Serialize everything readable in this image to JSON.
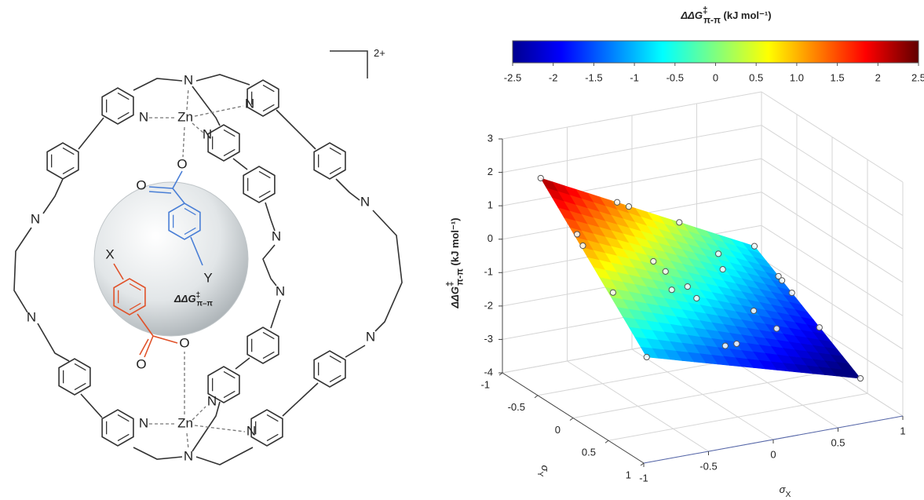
{
  "molecule": {
    "charge": "2+",
    "atom_labels": [
      "N",
      "Zn",
      "N",
      "N",
      "N",
      "N",
      "N",
      "N",
      "N",
      "N",
      "N",
      "N",
      "Zn",
      "N",
      "N",
      "N",
      "O",
      "O",
      "Y",
      "X",
      "O",
      "O"
    ],
    "sphere_label": {
      "symbol": "ΔΔG",
      "sup": "‡",
      "sub": "π–π"
    }
  },
  "chart_data": {
    "type": "surface3d",
    "title": {
      "symbol": "ΔΔG",
      "sup": "‡",
      "sub": "π-π",
      "unit": " (kJ mol⁻¹)"
    },
    "zlabel": {
      "symbol": "ΔΔG",
      "sup": "‡",
      "sub": "π-π",
      "unit": " (kJ mol⁻¹)"
    },
    "xlabel": {
      "symbol": "σ",
      "sub": "X"
    },
    "ylabel": {
      "symbol": "σ",
      "sub": "Y"
    },
    "colorbar": {
      "clim": [
        -2.5,
        2.5
      ],
      "ticks": [
        -2.5,
        -2,
        -1.5,
        -1,
        -0.5,
        0,
        0.5,
        {
          "value": 1,
          "label": "1.0"
        },
        1.5,
        2,
        2.5
      ]
    },
    "xlim": [
      -1,
      1
    ],
    "ylim": [
      -1,
      1
    ],
    "zlim": [
      -4,
      3
    ],
    "xticks": [
      -1,
      -0.5,
      0,
      0.5,
      1
    ],
    "yticks": [
      -1,
      -0.5,
      0,
      0.5,
      1
    ],
    "zticks": [
      3,
      2,
      1,
      0,
      -1,
      -2,
      -3,
      -4
    ],
    "grid": true,
    "surface": [
      [
        -0.95,
        -0.55,
        2.4
      ],
      [
        0.7,
        -0.55,
        -0.8
      ],
      [
        -0.95,
        0.95,
        -0.93
      ],
      [
        0.7,
        0.95,
        -2.73
      ]
    ],
    "points": {
      "x": [
        -0.95,
        -0.92,
        -0.93,
        -0.36,
        -0.27,
        0.12,
        -0.38,
        -0.33,
        -0.38,
        -0.22,
        -0.21,
        0.28,
        0.21,
        0.7,
        -0.91,
        -0.95,
        -0.24,
        -0.13,
        0.22,
        0.7,
        0.7,
        0.7,
        0.7,
        0.7,
        0.31
      ],
      "y": [
        -0.55,
        -0.09,
        0.01,
        -0.55,
        -0.55,
        -0.55,
        0.0,
        0.08,
        0.26,
        0.19,
        0.3,
        -0.29,
        -0.1,
        -0.55,
        0.4,
        0.95,
        0.76,
        0.72,
        0.32,
        -0.21,
        -0.16,
        -0.02,
        0.37,
        0.95,
        0.48
      ],
      "z": [
        2.4,
        1.32,
        1.12,
        1.26,
        1.07,
        0.32,
        0.25,
        0.02,
        -0.25,
        -0.36,
        -0.57,
        -0.38,
        -0.54,
        -0.8,
        0.23,
        -0.93,
        -1.35,
        -1.42,
        -1.22,
        -1.24,
        -1.3,
        -1.48,
        -1.99,
        -2.73,
        -1.6
      ]
    }
  }
}
